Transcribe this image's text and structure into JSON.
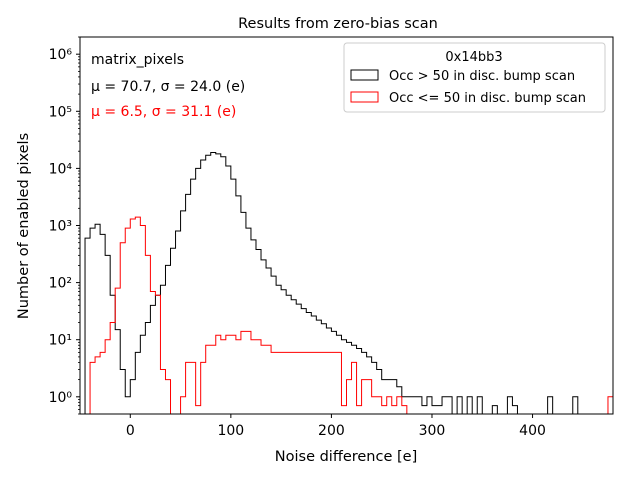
{
  "chart_data": {
    "type": "histogram",
    "title": "Results from zero-bias scan",
    "xlabel": "Noise difference [e]",
    "ylabel": "Number of enabled pixels",
    "xlim": [
      -50,
      480
    ],
    "ylim": [
      0.5,
      2000000
    ],
    "yscale": "log",
    "x_ticks": [
      0,
      100,
      200,
      300,
      400
    ],
    "y_ticks": [
      {
        "value": 1,
        "label": "10⁰"
      },
      {
        "value": 10,
        "label": "10¹"
      },
      {
        "value": 100,
        "label": "10²"
      },
      {
        "value": 1000,
        "label": "10³"
      },
      {
        "value": 10000,
        "label": "10⁴"
      },
      {
        "value": 100000,
        "label": "10⁵"
      },
      {
        "value": 1000000,
        "label": "10⁶"
      }
    ],
    "bin_start": -50,
    "bin_width": 5,
    "annotations": [
      {
        "text": "matrix_pixels",
        "color": "#000000"
      },
      {
        "text": "μ = 70.7, σ = 24.0 (e)",
        "color": "#000000"
      },
      {
        "text": "μ = 6.5, σ = 31.1 (e)",
        "color": "#ff0000"
      }
    ],
    "legend": {
      "title": "0x14bb3",
      "position": "top-right"
    },
    "series": [
      {
        "name": "Occ > 50 in disc. bump scan",
        "color": "#000000",
        "counts": [
          0,
          600,
          900,
          1050,
          700,
          300,
          60,
          15,
          3,
          1,
          2,
          6,
          12,
          20,
          40,
          60,
          90,
          200,
          400,
          800,
          1800,
          3500,
          6500,
          10000,
          14000,
          17000,
          19000,
          18000,
          16000,
          11000,
          6500,
          3300,
          1700,
          900,
          560,
          380,
          250,
          180,
          130,
          90,
          75,
          60,
          50,
          42,
          35,
          30,
          26,
          22,
          19,
          16,
          14,
          12,
          10,
          9,
          8,
          7,
          6,
          5,
          4,
          3,
          2,
          2,
          2,
          1.5,
          1,
          1,
          1,
          1,
          0.7,
          1,
          0.7,
          0.7,
          1,
          1,
          0,
          1,
          0,
          1,
          0,
          1,
          0,
          0,
          0.7,
          0,
          0,
          1,
          0.7,
          0,
          0,
          0,
          0,
          0,
          0,
          1,
          0,
          0,
          0,
          0,
          1,
          0,
          0,
          0,
          0,
          0,
          0,
          0,
          0,
          0,
          0,
          0,
          0,
          0,
          0,
          0,
          0,
          0
        ]
      },
      {
        "name": "Occ <= 50 in disc. bump scan",
        "color": "#ff0000",
        "counts": [
          0,
          0,
          4,
          5,
          6,
          10,
          20,
          80,
          500,
          900,
          1300,
          1400,
          1000,
          300,
          70,
          60,
          3,
          2,
          0,
          0,
          1,
          4,
          4,
          0.7,
          4,
          8,
          8,
          12,
          10,
          12,
          12,
          10,
          14,
          14,
          10,
          10,
          8,
          8,
          6,
          6,
          6,
          6,
          6,
          6,
          6,
          6,
          6,
          6,
          6,
          6,
          6,
          6,
          0.7,
          2,
          4,
          0.7,
          2,
          2,
          1,
          1,
          0.7,
          1,
          0.7,
          1,
          0.7,
          0,
          0,
          0,
          0,
          0,
          0,
          0,
          0,
          0,
          0,
          0,
          0,
          0,
          0,
          0,
          0,
          0,
          0,
          0,
          0,
          0,
          0,
          0,
          0,
          0,
          0,
          0,
          0,
          0,
          0,
          0,
          0,
          0,
          0,
          0,
          0,
          0,
          0,
          0,
          0,
          1,
          0
        ]
      }
    ]
  }
}
